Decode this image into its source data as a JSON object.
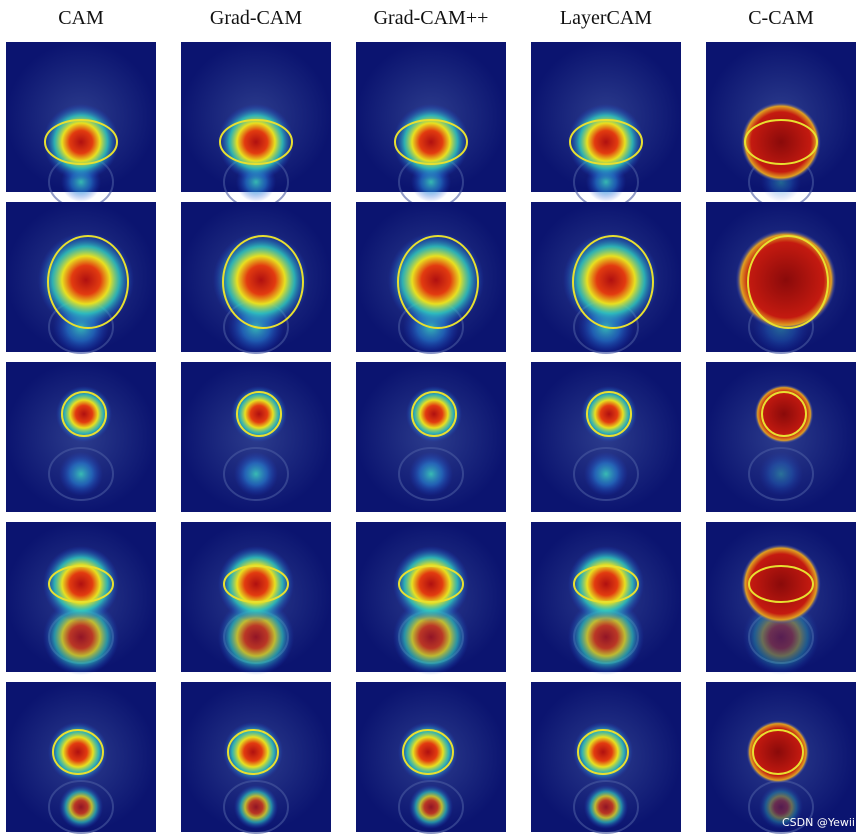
{
  "header": {
    "columns": [
      "CAM",
      "Grad-CAM",
      "Grad-CAM++",
      "LayerCAM",
      "C-CAM"
    ]
  },
  "watermark": "CSDN @Yewii"
}
